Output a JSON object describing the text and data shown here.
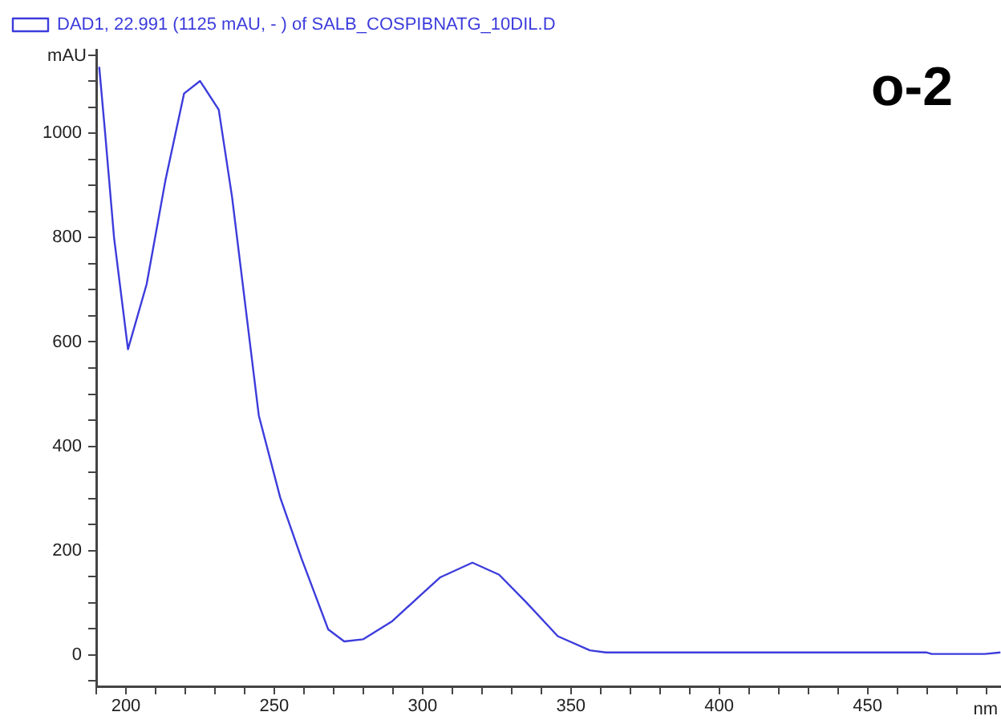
{
  "chart_data": {
    "type": "line",
    "xlabel": "nm",
    "ylabel": "mAU",
    "annotations": [
      "o-2"
    ],
    "legend": "top left",
    "marker": "none",
    "line_style": "solid",
    "grid": false,
    "xlim": [
      190,
      495
    ],
    "ylim": [
      -60,
      1160
    ],
    "xticks": [
      {
        "value": 190,
        "label": null
      },
      200,
      {
        "value": 210,
        "label": null
      },
      {
        "value": 220,
        "label": null
      },
      {
        "value": 230,
        "label": null
      },
      {
        "value": 240,
        "label": null
      },
      250,
      {
        "value": 260,
        "label": null
      },
      {
        "value": 270,
        "label": null
      },
      {
        "value": 280,
        "label": null
      },
      {
        "value": 290,
        "label": null
      },
      300,
      {
        "value": 310,
        "label": null
      },
      {
        "value": 320,
        "label": null
      },
      {
        "value": 330,
        "label": null
      },
      {
        "value": 340,
        "label": null
      },
      350,
      {
        "value": 360,
        "label": null
      },
      {
        "value": 370,
        "label": null
      },
      {
        "value": 380,
        "label": null
      },
      {
        "value": 390,
        "label": null
      },
      400,
      {
        "value": 410,
        "label": null
      },
      {
        "value": 420,
        "label": null
      },
      {
        "value": 430,
        "label": null
      },
      {
        "value": 440,
        "label": null
      },
      450,
      {
        "value": 460,
        "label": null
      },
      {
        "value": 470,
        "label": null
      },
      {
        "value": 480,
        "label": null
      },
      {
        "value": 490,
        "label": null
      }
    ],
    "yticks": [
      {
        "value": -50,
        "label": null
      },
      0,
      {
        "value": 50,
        "label": null
      },
      {
        "value": 100,
        "label": null
      },
      {
        "value": 150,
        "label": null
      },
      200,
      {
        "value": 250,
        "label": null
      },
      {
        "value": 300,
        "label": null
      },
      {
        "value": 350,
        "label": null
      },
      400,
      {
        "value": 450,
        "label": null
      },
      {
        "value": 500,
        "label": null
      },
      {
        "value": 550,
        "label": null
      },
      600,
      {
        "value": 650,
        "label": null
      },
      {
        "value": 700,
        "label": null
      },
      {
        "value": 750,
        "label": null
      },
      800,
      {
        "value": 850,
        "label": null
      },
      {
        "value": 900,
        "label": null
      },
      {
        "value": 950,
        "label": null
      },
      1000,
      {
        "value": 1050,
        "label": null
      },
      {
        "value": 1100,
        "label": null
      },
      {
        "value": 1150,
        "label": null
      }
    ],
    "series": [
      {
        "name": "DAD1, 22.991 (1125 mAU, - ) of SALB_COSPIBNATG_10DIL.D",
        "color": "#3c3cdc",
        "x": [
          191,
          193,
          196,
          200.7,
          207,
          213.3,
          219.6,
          225,
          231.3,
          235.8,
          240.3,
          244.8,
          252,
          259.2,
          268.2,
          273.6,
          279.9,
          289.8,
          298.8,
          306,
          316.8,
          325.8,
          334.8,
          345.6,
          356.4,
          361.8,
          400,
          450,
          469.8,
          471.6,
          489.6,
          494.8
        ],
        "values": [
          1127,
          1000,
          800,
          586,
          711,
          909,
          1076,
          1100,
          1045,
          877,
          668,
          459,
          302,
          185,
          49,
          26,
          30,
          65,
          112,
          149,
          177,
          154,
          102,
          36,
          9,
          5,
          5,
          5,
          5,
          2,
          2,
          5
        ]
      }
    ]
  }
}
